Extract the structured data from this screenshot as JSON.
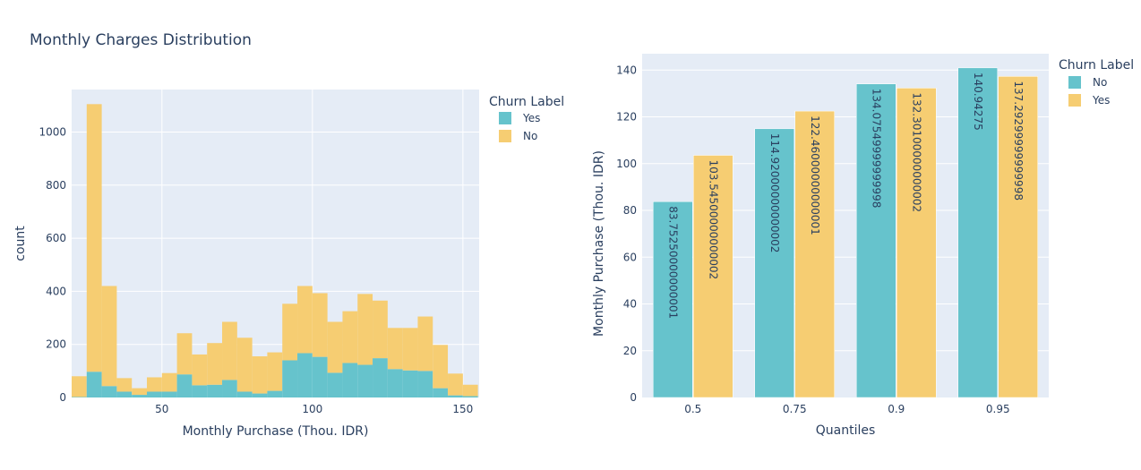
{
  "title": "Monthly Charges Distribution",
  "colors": {
    "teal": "#66c3cc",
    "yellow": "#f6cd72",
    "plot_bg": "#e5ecf6"
  },
  "chart_data": [
    {
      "type": "bar",
      "subtype": "stacked-histogram",
      "xlabel": "Monthly Purchase (Thou. IDR)",
      "ylabel": "count",
      "xlim": [
        20,
        155.4
      ],
      "ylim": [
        0,
        1160
      ],
      "xticks": [
        50,
        100,
        150
      ],
      "yticks": [
        0,
        200,
        400,
        600,
        800,
        1000
      ],
      "grid": true,
      "legend": {
        "title": "Churn Label",
        "placement": "right"
      },
      "bin_width": 5,
      "bin_starts": [
        20,
        25,
        30,
        35,
        40,
        45,
        50,
        55,
        60,
        65,
        70,
        75,
        80,
        85,
        90,
        95,
        100,
        105,
        110,
        115,
        120,
        125,
        130,
        135,
        140,
        145,
        150
      ],
      "series": [
        {
          "name": "Yes",
          "color": "#66c3cc",
          "values": [
            2,
            97,
            43,
            22,
            10,
            22,
            22,
            87,
            46,
            48,
            66,
            22,
            15,
            25,
            140,
            167,
            153,
            93,
            130,
            123,
            148,
            107,
            102,
            100,
            35,
            8,
            5
          ]
        },
        {
          "name": "No",
          "color": "#f6cd72",
          "values": [
            78,
            1008,
            377,
            51,
            25,
            54,
            70,
            155,
            116,
            157,
            219,
            203,
            140,
            145,
            213,
            253,
            240,
            192,
            195,
            267,
            217,
            155,
            160,
            205,
            163,
            82,
            43
          ]
        }
      ]
    },
    {
      "type": "bar",
      "subtype": "grouped",
      "xlabel": "Quantiles",
      "ylabel": "Monthly Purchase (Thou. IDR)",
      "ylim": [
        0,
        147
      ],
      "yticks": [
        0,
        20,
        40,
        60,
        80,
        100,
        120,
        140
      ],
      "grid": true,
      "legend": {
        "title": "Churn Label",
        "placement": "right"
      },
      "categories": [
        "0.5",
        "0.75",
        "0.9",
        "0.95"
      ],
      "series": [
        {
          "name": "No",
          "color": "#66c3cc",
          "values": [
            83.7525,
            114.92,
            134.0755,
            140.94275
          ],
          "labels": [
            "83.75250000000001",
            "114.92000000000002",
            "134.07549999999998",
            "140.94275"
          ]
        },
        {
          "name": "Yes",
          "color": "#f6cd72",
          "values": [
            103.545,
            122.46,
            132.301,
            137.293
          ],
          "labels": [
            "103.54500000000002",
            "122.46000000000001",
            "132.30100000000002",
            "137.29299999999998"
          ]
        }
      ]
    }
  ]
}
